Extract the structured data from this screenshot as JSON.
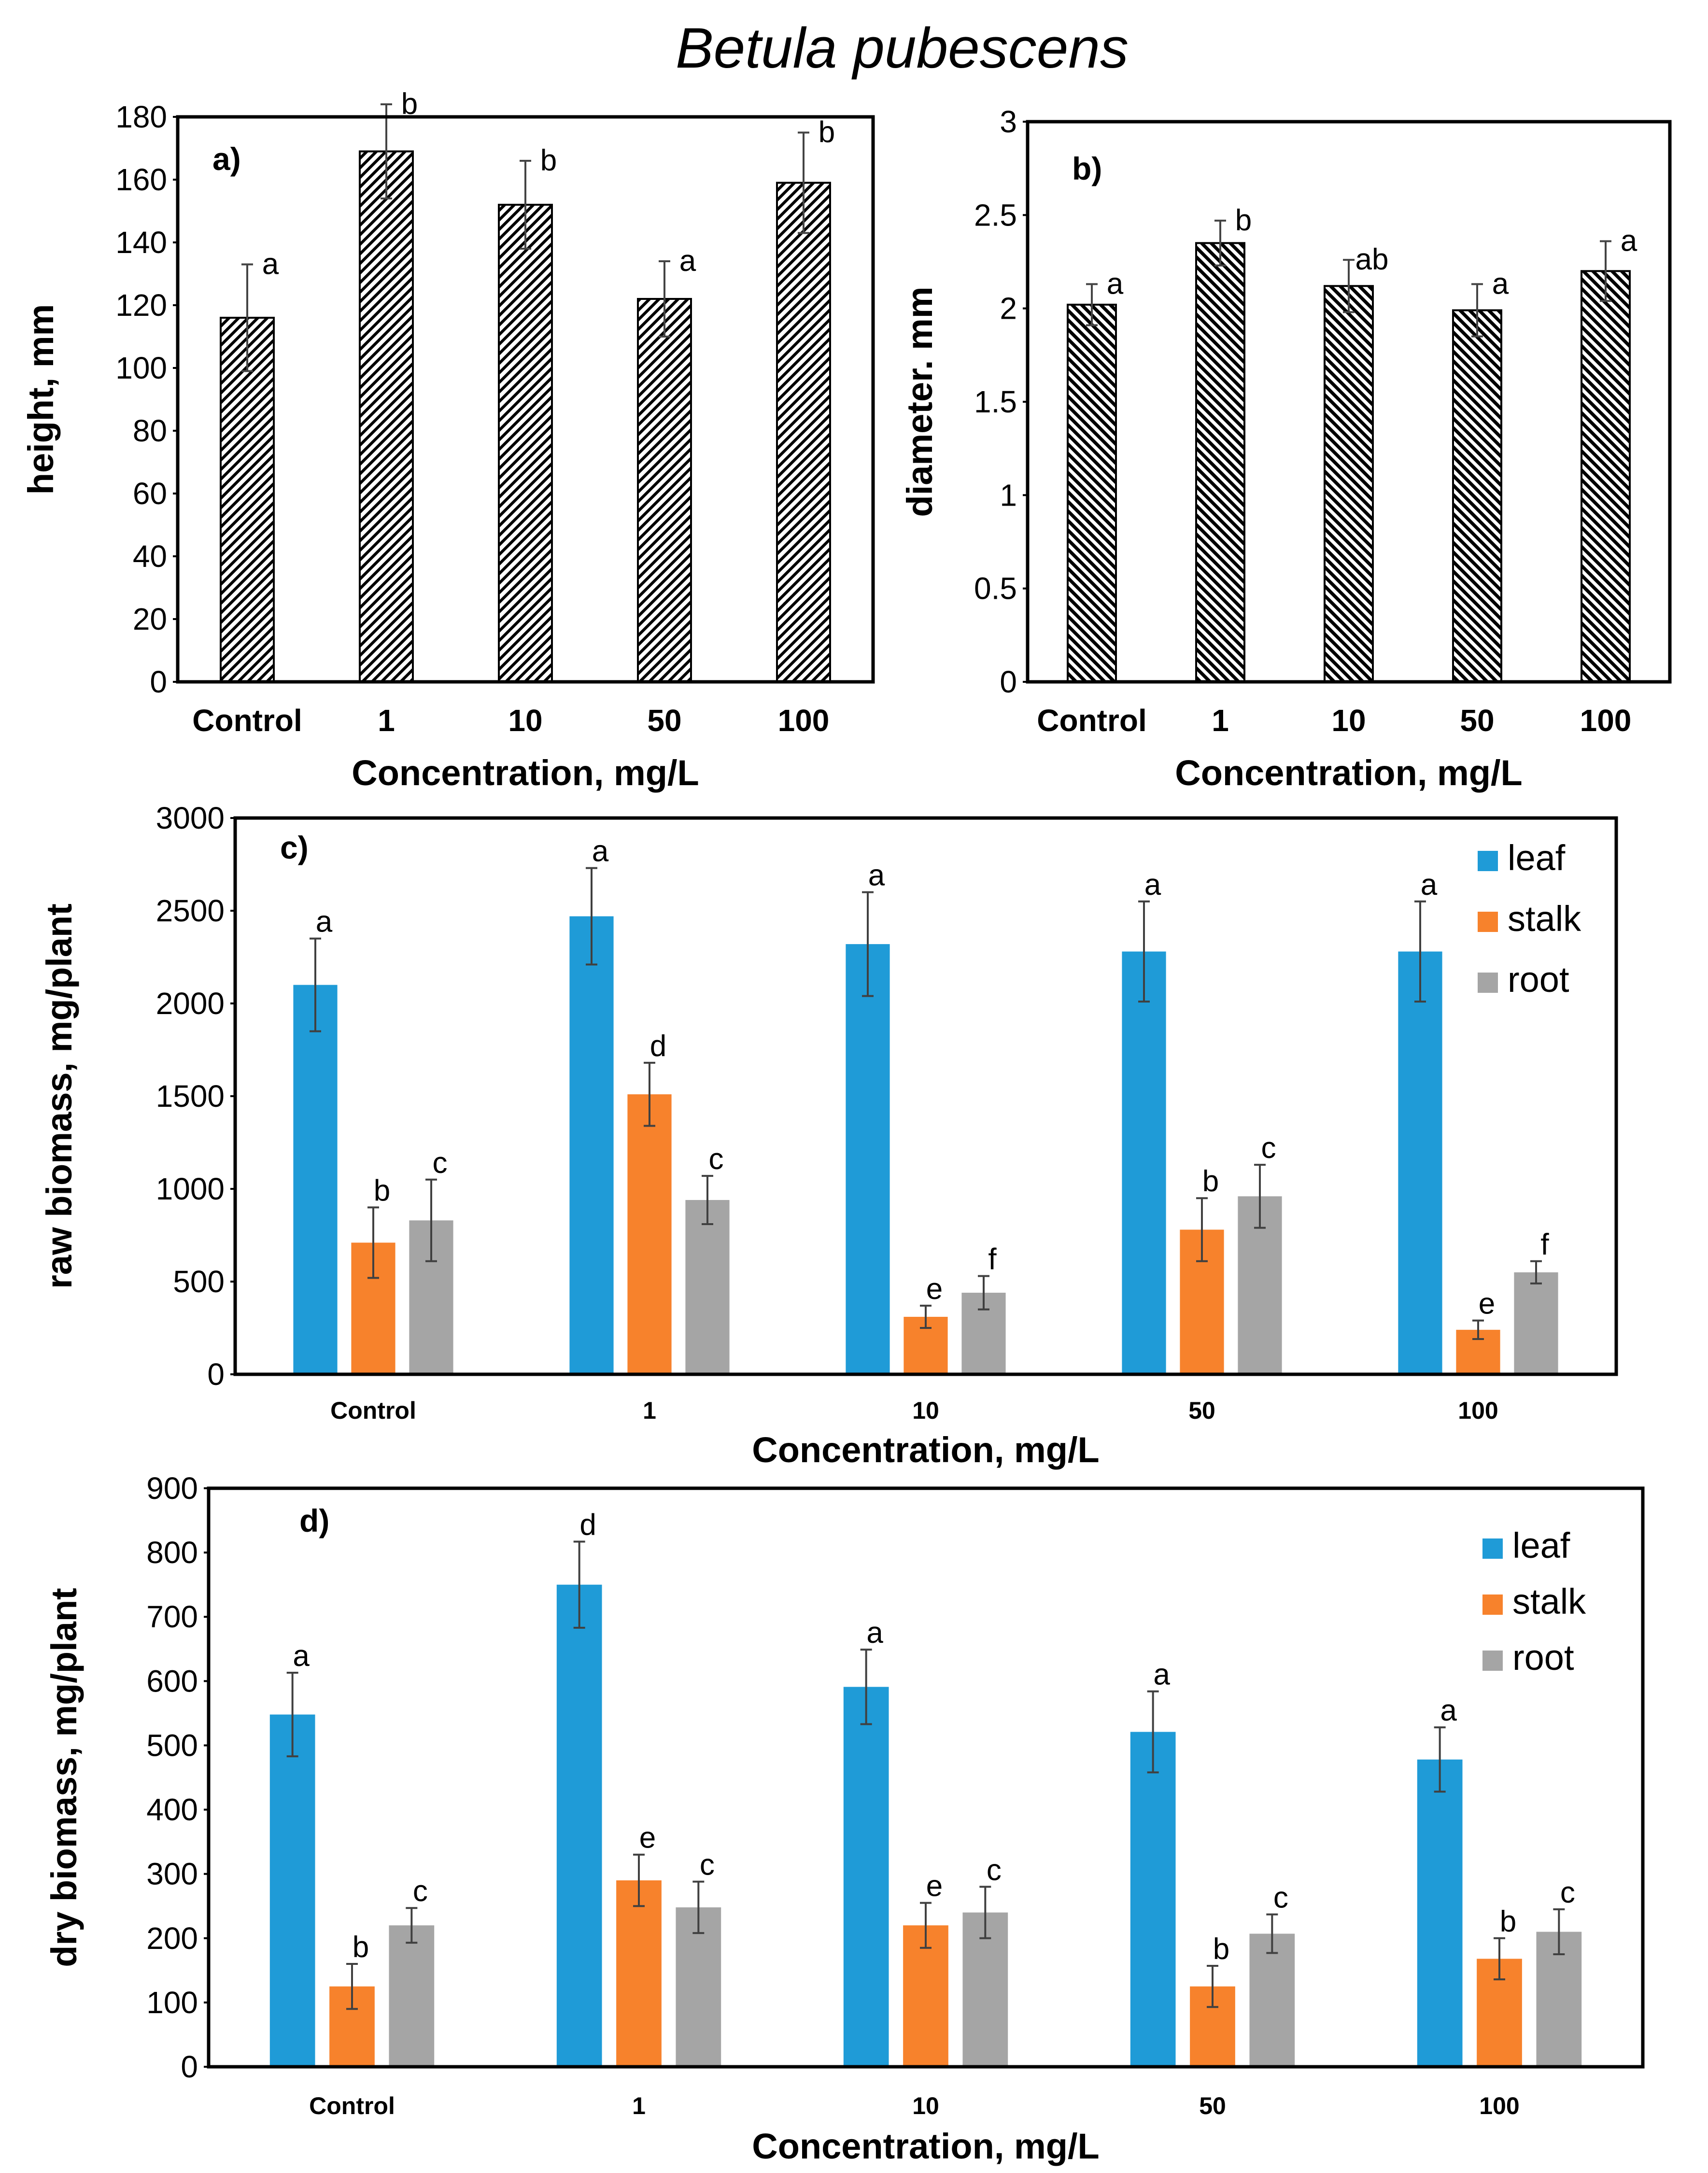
{
  "title": "Betula pubescens",
  "colors": {
    "leaf": "#1f9bd7",
    "stalk": "#f7822c",
    "root": "#a5a5a5",
    "axis": "#000000"
  },
  "chart_data": [
    {
      "id": "a",
      "panel_label": "a)",
      "type": "bar",
      "pattern": "diag-left",
      "categories": [
        "Control",
        "1",
        "10",
        "50",
        "100"
      ],
      "values": [
        116,
        169,
        152,
        122,
        159
      ],
      "errors": [
        17,
        15,
        14,
        12,
        16
      ],
      "letters": [
        "a",
        "b",
        "b",
        "a",
        "b"
      ],
      "ylabel": "height, mm",
      "xlabel": "Concentration, mg/L",
      "ylim": [
        0,
        180
      ],
      "yticks": [
        0,
        20,
        40,
        60,
        80,
        100,
        120,
        140,
        160,
        180
      ],
      "ytick_labels": [
        "0",
        "20",
        "40",
        "60",
        "80",
        "100",
        "120",
        "140",
        "160",
        "180"
      ]
    },
    {
      "id": "b",
      "panel_label": "b)",
      "type": "bar",
      "pattern": "diag-right",
      "categories": [
        "Control",
        "1",
        "10",
        "50",
        "100"
      ],
      "values": [
        2.02,
        2.35,
        2.12,
        1.99,
        2.2
      ],
      "errors": [
        0.11,
        0.12,
        0.14,
        0.14,
        0.16
      ],
      "letters": [
        "a",
        "b",
        "ab",
        "a",
        "a"
      ],
      "ylabel": "diameter. mm",
      "xlabel": "Concentration, mg/L",
      "ylim": [
        0,
        3
      ],
      "yticks": [
        0,
        0.5,
        1,
        1.5,
        2,
        2.5,
        3
      ],
      "ytick_labels": [
        "0",
        "0.5",
        "1",
        "1.5",
        "2",
        "2.5",
        "3"
      ]
    },
    {
      "id": "c",
      "panel_label": "c)",
      "type": "bar",
      "categories": [
        "Control",
        "1",
        "10",
        "50",
        "100"
      ],
      "series": [
        {
          "name": "leaf",
          "values": [
            2100,
            2470,
            2320,
            2280,
            2280
          ],
          "errors": [
            250,
            260,
            280,
            270,
            270
          ],
          "letters": [
            "a",
            "a",
            "a",
            "a",
            "a"
          ]
        },
        {
          "name": "stalk",
          "values": [
            710,
            1510,
            310,
            780,
            240
          ],
          "errors": [
            190,
            170,
            60,
            170,
            50
          ],
          "letters": [
            "b",
            "d",
            "e",
            "b",
            "e"
          ]
        },
        {
          "name": "root",
          "values": [
            830,
            940,
            440,
            960,
            550
          ],
          "errors": [
            220,
            130,
            90,
            170,
            60
          ],
          "letters": [
            "c",
            "c",
            "f",
            "c",
            "f"
          ]
        }
      ],
      "ylabel": "raw biomass, mg/plant",
      "xlabel": "Concentration, mg/L",
      "ylim": [
        0,
        3000
      ],
      "yticks": [
        0,
        500,
        1000,
        1500,
        2000,
        2500,
        3000
      ],
      "ytick_labels": [
        "0",
        "500",
        "1000",
        "1500",
        "2000",
        "2500",
        "3000"
      ],
      "legend": [
        "leaf",
        "stalk",
        "root"
      ]
    },
    {
      "id": "d",
      "panel_label": "d)",
      "type": "bar",
      "categories": [
        "Control",
        "1",
        "10",
        "50",
        "100"
      ],
      "series": [
        {
          "name": "leaf",
          "values": [
            548,
            750,
            591,
            521,
            478
          ],
          "errors": [
            65,
            67,
            58,
            63,
            50
          ],
          "letters": [
            "a",
            "d",
            "a",
            "a",
            "a"
          ]
        },
        {
          "name": "stalk",
          "values": [
            125,
            290,
            220,
            125,
            168
          ],
          "errors": [
            35,
            40,
            35,
            32,
            32
          ],
          "letters": [
            "b",
            "e",
            "e",
            "b",
            "b"
          ]
        },
        {
          "name": "root",
          "values": [
            220,
            248,
            240,
            207,
            210
          ],
          "errors": [
            27,
            40,
            40,
            30,
            35
          ],
          "letters": [
            "c",
            "c",
            "c",
            "c",
            "c"
          ]
        }
      ],
      "ylabel": "dry biomass, mg/plant",
      "xlabel": "Concentration, mg/L",
      "ylim": [
        0,
        900
      ],
      "yticks": [
        0,
        100,
        200,
        300,
        400,
        500,
        600,
        700,
        800,
        900
      ],
      "ytick_labels": [
        "0",
        "100",
        "200",
        "300",
        "400",
        "500",
        "600",
        "700",
        "800",
        "900"
      ],
      "legend": [
        "leaf",
        "stalk",
        "root"
      ]
    }
  ]
}
